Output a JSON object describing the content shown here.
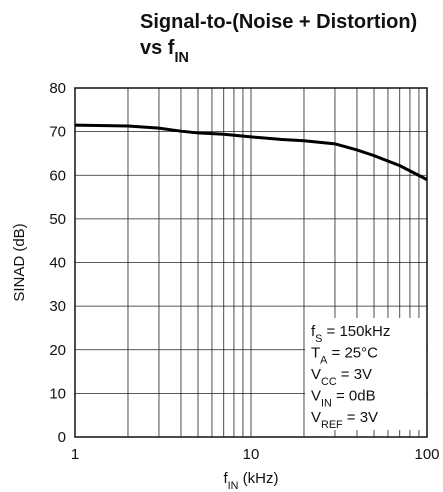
{
  "chart_data": {
    "type": "line",
    "title": [
      [
        "Signal-to-(Noise + Distortion)"
      ],
      [
        "vs f",
        "IN"
      ]
    ],
    "x_label": [
      "f",
      "IN",
      " (kHz)"
    ],
    "y_label": "SINAD (dB)",
    "xscale": "log",
    "xlim": [
      1,
      100
    ],
    "xticks": [
      1,
      10,
      100
    ],
    "xminorticks": [
      2,
      3,
      4,
      5,
      6,
      7,
      8,
      9,
      20,
      30,
      40,
      50,
      60,
      70,
      80,
      90
    ],
    "ylim": [
      0,
      80
    ],
    "yticks": [
      0,
      10,
      20,
      30,
      40,
      50,
      60,
      70,
      80
    ],
    "grid": true,
    "x": [
      1,
      2,
      3,
      4,
      5,
      7,
      10,
      15,
      20,
      30,
      40,
      50,
      70,
      100
    ],
    "series": [
      {
        "color": "#000000",
        "values": [
          71.5,
          71.3,
          70.8,
          70.1,
          69.7,
          69.4,
          68.8,
          68.2,
          67.9,
          67.2,
          65.8,
          64.5,
          62.2,
          59.0
        ]
      }
    ],
    "annotations": [
      [
        "f",
        "S",
        " = 150kHz"
      ],
      [
        "T",
        "A",
        " = 25°C"
      ],
      [
        "V",
        "CC",
        " = 3V"
      ],
      [
        "V",
        "IN",
        " = 0dB"
      ],
      [
        "V",
        "REF",
        " = 3V"
      ]
    ]
  }
}
